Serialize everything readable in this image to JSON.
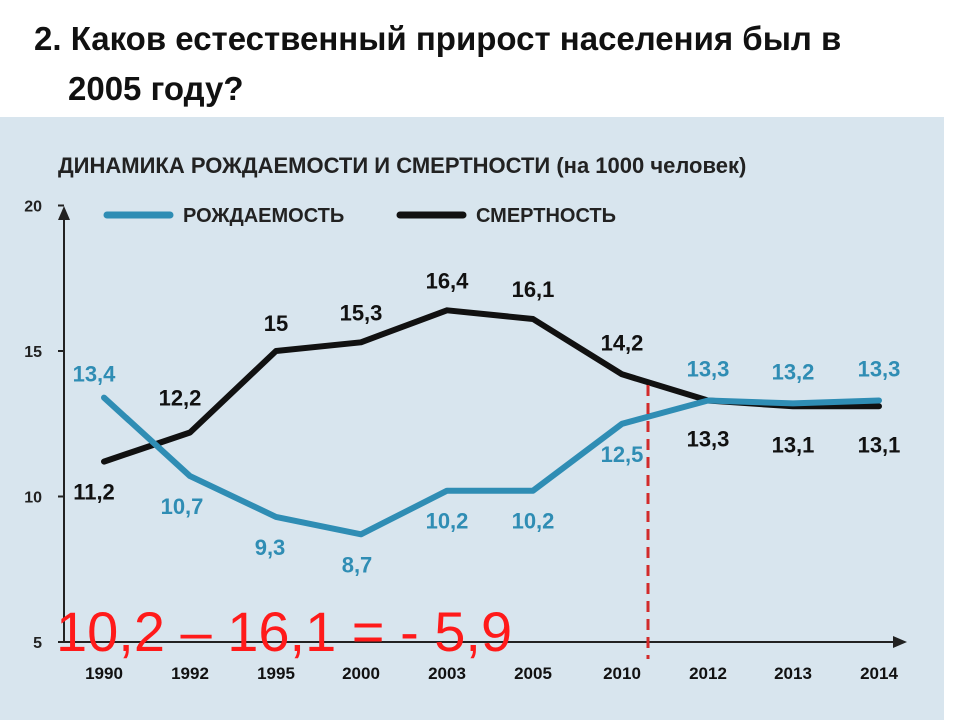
{
  "question": {
    "line1": "2. Каков естественный прирост населения был в",
    "line2": "2005 году?"
  },
  "answer": "10,2 – 16,1 = - 5,9",
  "colors": {
    "birth": "#2f8db4",
    "death": "#111111",
    "answer": "#ff1a1a",
    "background": "#d8e5ee",
    "marker": "#d22b2b"
  },
  "chart_data": {
    "type": "line",
    "title": "ДИНАМИКА РОЖДАЕМОСТИ И СМЕРТНОСТИ (на 1000 человек)",
    "categories": [
      "1990",
      "1992",
      "1995",
      "2000",
      "2003",
      "2005",
      "2010",
      "2012",
      "2013",
      "2014"
    ],
    "series": [
      {
        "name": "РОЖДАЕМОСТЬ",
        "color": "#2f8db4",
        "values": [
          13.4,
          10.7,
          9.3,
          8.7,
          10.2,
          10.2,
          12.5,
          13.3,
          13.2,
          13.3
        ],
        "labels": [
          "13,4",
          "10,7",
          "9,3",
          "8,7",
          "10,2",
          "10,2",
          "12,5",
          "13,3",
          "13,2",
          "13,3"
        ]
      },
      {
        "name": "СМЕРТНОСТЬ",
        "color": "#111111",
        "values": [
          11.2,
          12.2,
          15,
          15.3,
          16.4,
          16.1,
          14.2,
          13.3,
          13.1,
          13.1
        ],
        "labels": [
          "11,2",
          "12,2",
          "15",
          "15,3",
          "16,4",
          "16,1",
          "14,2",
          "13,3",
          "13,1",
          "13,1"
        ]
      }
    ],
    "yticks": [
      "20",
      "15",
      "10",
      "5"
    ],
    "ylim": [
      5,
      20
    ],
    "legend": "top",
    "grid": false
  }
}
